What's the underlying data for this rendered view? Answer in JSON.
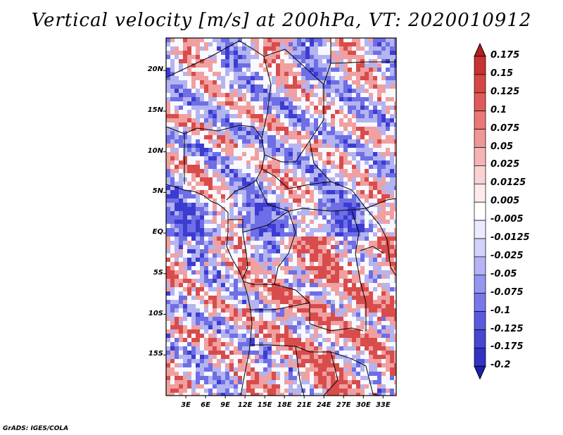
{
  "title": "Vertical velocity [m/s] at 200hPa, VT: 2020010912",
  "credit": "GrADS: IGES/COLA",
  "lat_labels": [
    "20N",
    "15N",
    "10N",
    "5N",
    "EQ",
    "5S",
    "10S",
    "15S"
  ],
  "lon_labels": [
    "3E",
    "6E",
    "9E",
    "12E",
    "15E",
    "18E",
    "21E",
    "24E",
    "27E",
    "30E",
    "33E"
  ],
  "colorbar": {
    "labels": [
      "0.175",
      "0.15",
      "0.125",
      "0.1",
      "0.075",
      "0.05",
      "0.025",
      "0.0125",
      "0.005",
      "-0.005",
      "-0.0125",
      "-0.025",
      "-0.05",
      "-0.075",
      "-0.1",
      "-0.125",
      "-0.175",
      "-0.2"
    ],
    "colors": [
      "#b41e1e",
      "#c83232",
      "#d74646",
      "#e15a5a",
      "#eb7878",
      "#f09696",
      "#f5b4b4",
      "#f9d2d2",
      "#fdebeb",
      "#ffffff",
      "#ebebff",
      "#d2d2fa",
      "#b4b4f5",
      "#9696f0",
      "#7878eb",
      "#5a5ae1",
      "#4646d2",
      "#3232c3",
      "#1e1eaa"
    ]
  },
  "map": {
    "lon_range": [
      0,
      35
    ],
    "lat_range": [
      -20,
      24
    ],
    "palette": {
      "red": "#d94c4c",
      "light_red": "#f0a0a0",
      "white": "#f8f8ff",
      "light_blue": "#b4b4f0",
      "blue": "#6e6ee6",
      "dark_blue": "#3c3cd2"
    }
  }
}
